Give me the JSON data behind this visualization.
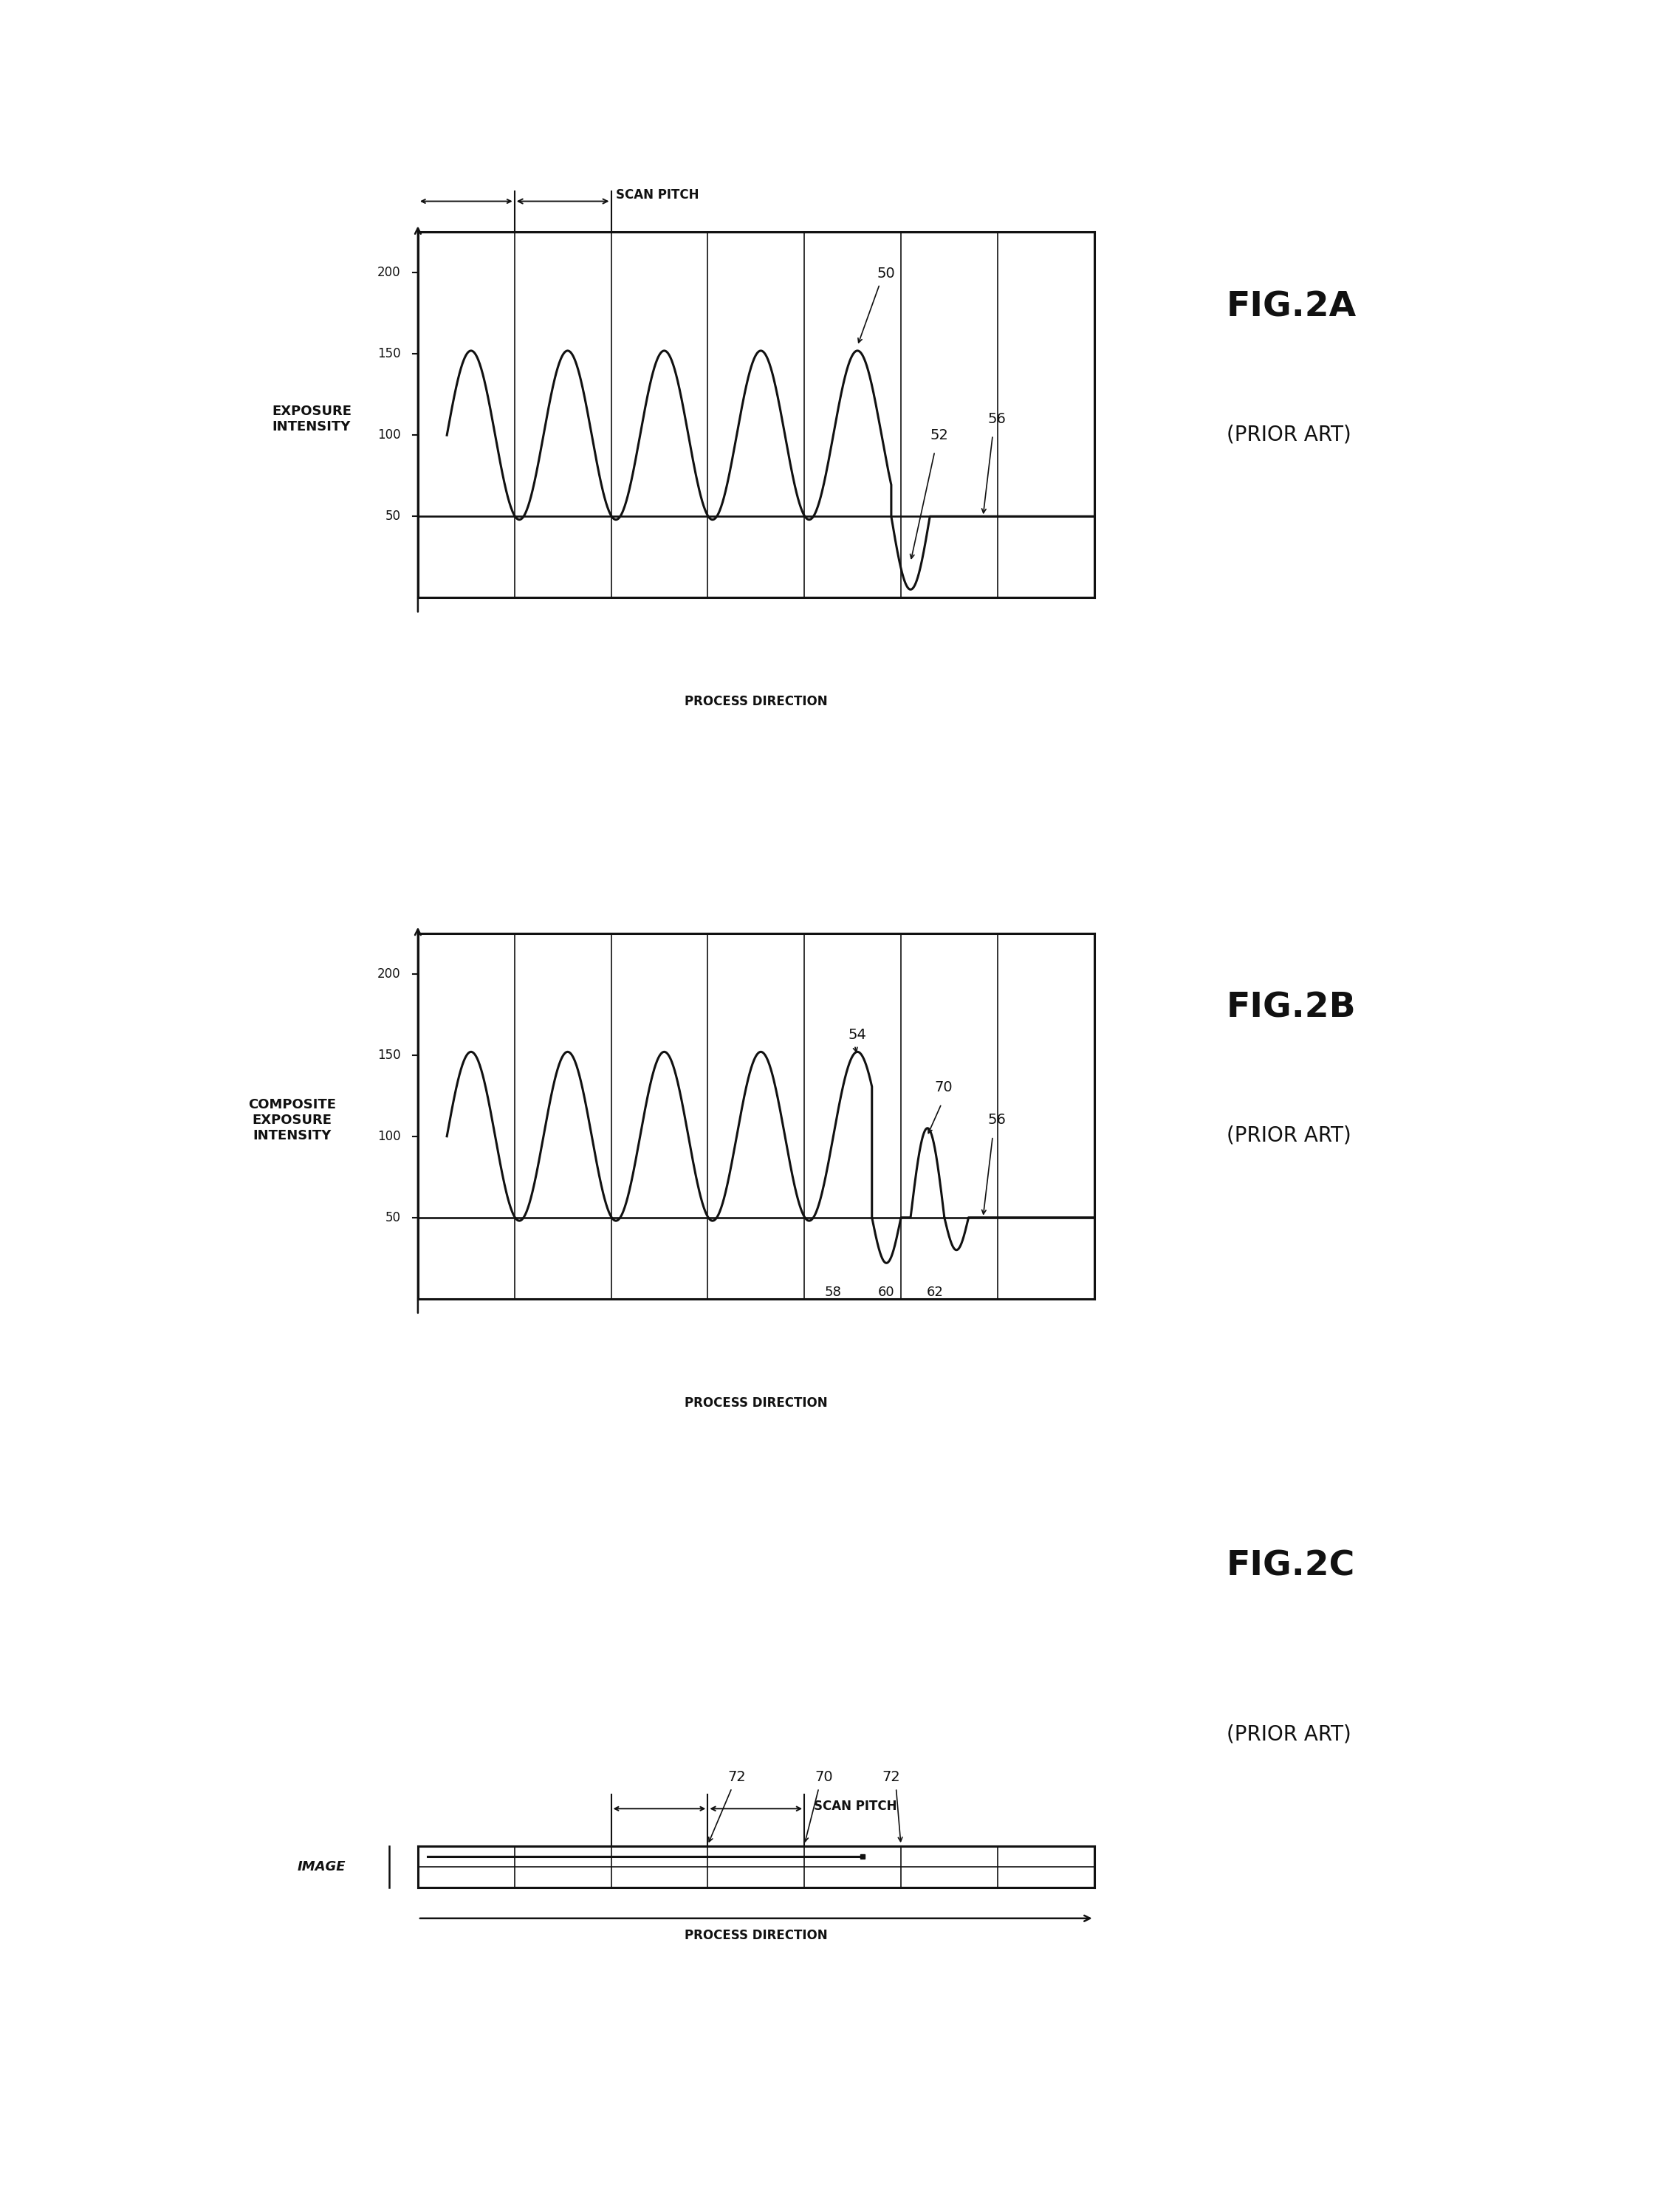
{
  "bg_color": "#ffffff",
  "ink_color": "#111111",
  "fig_width": 22.75,
  "fig_height": 29.67,
  "ncols": 7,
  "fig2a_title": "FIG.2A",
  "fig2a_subtitle": "(PRIOR ART)",
  "fig2b_title": "FIG.2B",
  "fig2b_subtitle": "(PRIOR ART)",
  "fig2c_title": "FIG.2C",
  "fig2c_subtitle": "(PRIOR ART)",
  "ylabel_2a": "EXPOSURE\nINTENSITY",
  "ylabel_2b": "COMPOSITE\nEXPOSURE\nINTENSITY",
  "ylabel_2c": "IMAGE",
  "xlabel": "PROCESS DIRECTION",
  "scan_pitch_label": "SCAN PITCH",
  "ytick_labels": [
    "50",
    "100",
    "150",
    "200"
  ],
  "ytick_vals": [
    50,
    100,
    150,
    200
  ],
  "ymax": 225,
  "ymin": 0,
  "baseline": 50
}
